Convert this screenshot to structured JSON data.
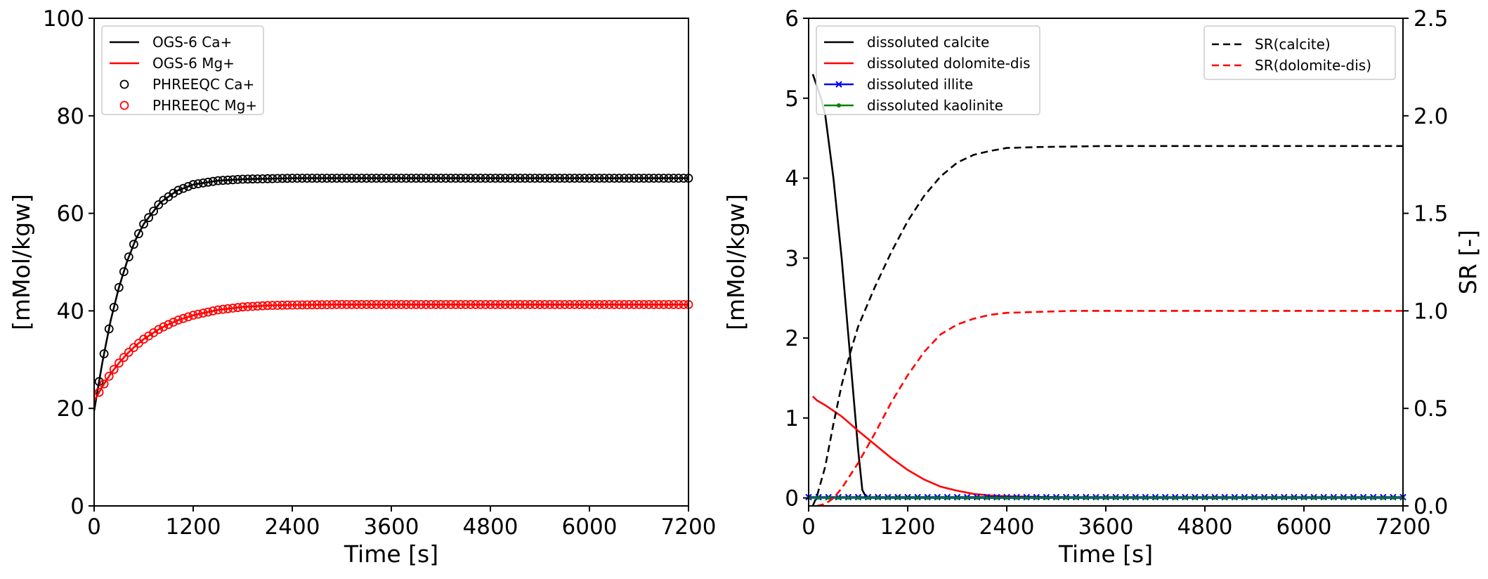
{
  "chart_data": [
    {
      "type": "line",
      "xlabel": "Time [s]",
      "ylabel": "[mMol/kgw]",
      "xlim": [
        0,
        7200
      ],
      "ylim": [
        0,
        100
      ],
      "xticks": [
        "0",
        "1200",
        "2400",
        "3600",
        "4800",
        "6000",
        "7200"
      ],
      "yticks": [
        "0",
        "20",
        "40",
        "60",
        "80",
        "100"
      ],
      "legend": {
        "placement": "top-left",
        "entries": [
          "OGS-6 Ca+",
          "OGS-6 Mg+",
          "PHREEQC Ca+",
          "PHREEQC Mg+"
        ]
      },
      "x": [
        0,
        100,
        200,
        300,
        400,
        500,
        600,
        800,
        1000,
        1200,
        1500,
        1800,
        2100,
        2400,
        3000,
        3600,
        4800,
        6000,
        7200
      ],
      "series": [
        {
          "name": "OGS-6 Ca+",
          "style": "line",
          "color": "#000000",
          "values": [
            19.5,
            29.5,
            38.0,
            44.8,
            50.2,
            54.5,
            57.8,
            62.2,
            64.6,
            65.9,
            66.7,
            67.0,
            67.1,
            67.2,
            67.2,
            67.2,
            67.2,
            67.2,
            67.2
          ]
        },
        {
          "name": "OGS-6 Mg+",
          "style": "line",
          "color": "#ff0000",
          "values": [
            21.5,
            24.5,
            27.1,
            29.3,
            31.2,
            32.8,
            34.2,
            36.4,
            38.0,
            39.1,
            40.2,
            40.8,
            41.1,
            41.2,
            41.3,
            41.3,
            41.3,
            41.3,
            41.3
          ]
        },
        {
          "name": "PHREEQC Ca+",
          "style": "markers",
          "color": "#000000",
          "values": [
            19.5,
            29.5,
            38.0,
            44.8,
            50.2,
            54.5,
            57.8,
            62.2,
            64.6,
            65.9,
            66.7,
            67.0,
            67.1,
            67.2,
            67.2,
            67.2,
            67.2,
            67.2,
            67.2
          ]
        },
        {
          "name": "PHREEQC Mg+",
          "style": "markers",
          "color": "#ff0000",
          "values": [
            21.5,
            24.5,
            27.1,
            29.3,
            31.2,
            32.8,
            34.2,
            36.4,
            38.0,
            39.1,
            40.2,
            40.8,
            41.1,
            41.2,
            41.3,
            41.3,
            41.3,
            41.3,
            41.3
          ]
        }
      ]
    },
    {
      "type": "line",
      "xlabel": "Time [s]",
      "ylabel": "[mMol/kgw]",
      "ylabel_right": "SR [-]",
      "xlim": [
        0,
        7200
      ],
      "ylim": [
        -0.1,
        6
      ],
      "ylim_right": [
        0,
        2.5
      ],
      "xticks": [
        "0",
        "1200",
        "2400",
        "3600",
        "4800",
        "6000",
        "7200"
      ],
      "yticks": [
        "0",
        "1",
        "2",
        "3",
        "4",
        "5",
        "6"
      ],
      "yticks_right": [
        "0.0",
        "0.5",
        "1.0",
        "1.5",
        "2.0",
        "2.5"
      ],
      "legend": {
        "placement": "top-left",
        "entries": [
          "dissoluted calcite",
          "dissoluted dolomite-dis",
          "dissoluted illite",
          "dissoluted kaolinite"
        ]
      },
      "legend_right": {
        "placement": "top-right",
        "entries": [
          "SR(calcite)",
          "SR(dolomite-dis)"
        ]
      },
      "series": [
        {
          "name": "dissoluted calcite",
          "axis": "left",
          "color": "#000000",
          "dash": "solid",
          "x": [
            50,
            100,
            150,
            200,
            300,
            400,
            500,
            600,
            650,
            700,
            1000,
            2000,
            3600,
            7200
          ],
          "values": [
            5.3,
            5.15,
            5.0,
            4.8,
            4.0,
            3.0,
            1.8,
            0.6,
            0.1,
            0.0,
            0.0,
            0.0,
            0.0,
            0.0
          ]
        },
        {
          "name": "dissoluted dolomite-dis",
          "axis": "left",
          "color": "#ff0000",
          "dash": "solid",
          "x": [
            50,
            100,
            200,
            300,
            400,
            500,
            600,
            800,
            1000,
            1200,
            1400,
            1600,
            1800,
            2000,
            2200,
            2400,
            3000,
            3600,
            7200
          ],
          "values": [
            1.27,
            1.22,
            1.16,
            1.09,
            1.02,
            0.93,
            0.84,
            0.67,
            0.5,
            0.35,
            0.23,
            0.14,
            0.09,
            0.05,
            0.03,
            0.02,
            0.01,
            0.0,
            0.0
          ]
        },
        {
          "name": "dissoluted illite",
          "axis": "left",
          "color": "#0000ff",
          "dash": "solid",
          "marker": "x",
          "x": [
            0,
            7200
          ],
          "values": [
            0.01,
            0.01
          ]
        },
        {
          "name": "dissoluted kaolinite",
          "axis": "left",
          "color": "#008000",
          "dash": "solid",
          "marker": "dot",
          "x": [
            0,
            7200
          ],
          "values": [
            0.0,
            0.0
          ]
        },
        {
          "name": "SR(calcite)",
          "axis": "right",
          "color": "#000000",
          "dash": "dashed",
          "x": [
            50,
            100,
            200,
            300,
            400,
            500,
            600,
            800,
            1000,
            1200,
            1400,
            1600,
            1800,
            2000,
            2200,
            2400,
            2800,
            3600,
            4800,
            7200
          ],
          "values": [
            0.0,
            0.05,
            0.2,
            0.42,
            0.62,
            0.78,
            0.92,
            1.12,
            1.3,
            1.46,
            1.59,
            1.69,
            1.76,
            1.8,
            1.82,
            1.835,
            1.84,
            1.845,
            1.845,
            1.845
          ]
        },
        {
          "name": "SR(dolomite-dis)",
          "axis": "right",
          "color": "#ff0000",
          "dash": "dashed",
          "x": [
            100,
            200,
            300,
            400,
            600,
            800,
            1000,
            1200,
            1400,
            1600,
            1800,
            2000,
            2200,
            2400,
            2800,
            3200,
            3600,
            4800,
            7200
          ],
          "values": [
            0.0,
            0.01,
            0.04,
            0.09,
            0.22,
            0.37,
            0.53,
            0.67,
            0.79,
            0.88,
            0.93,
            0.96,
            0.98,
            0.99,
            0.995,
            1.0,
            1.0,
            1.0,
            1.0
          ]
        }
      ]
    }
  ]
}
